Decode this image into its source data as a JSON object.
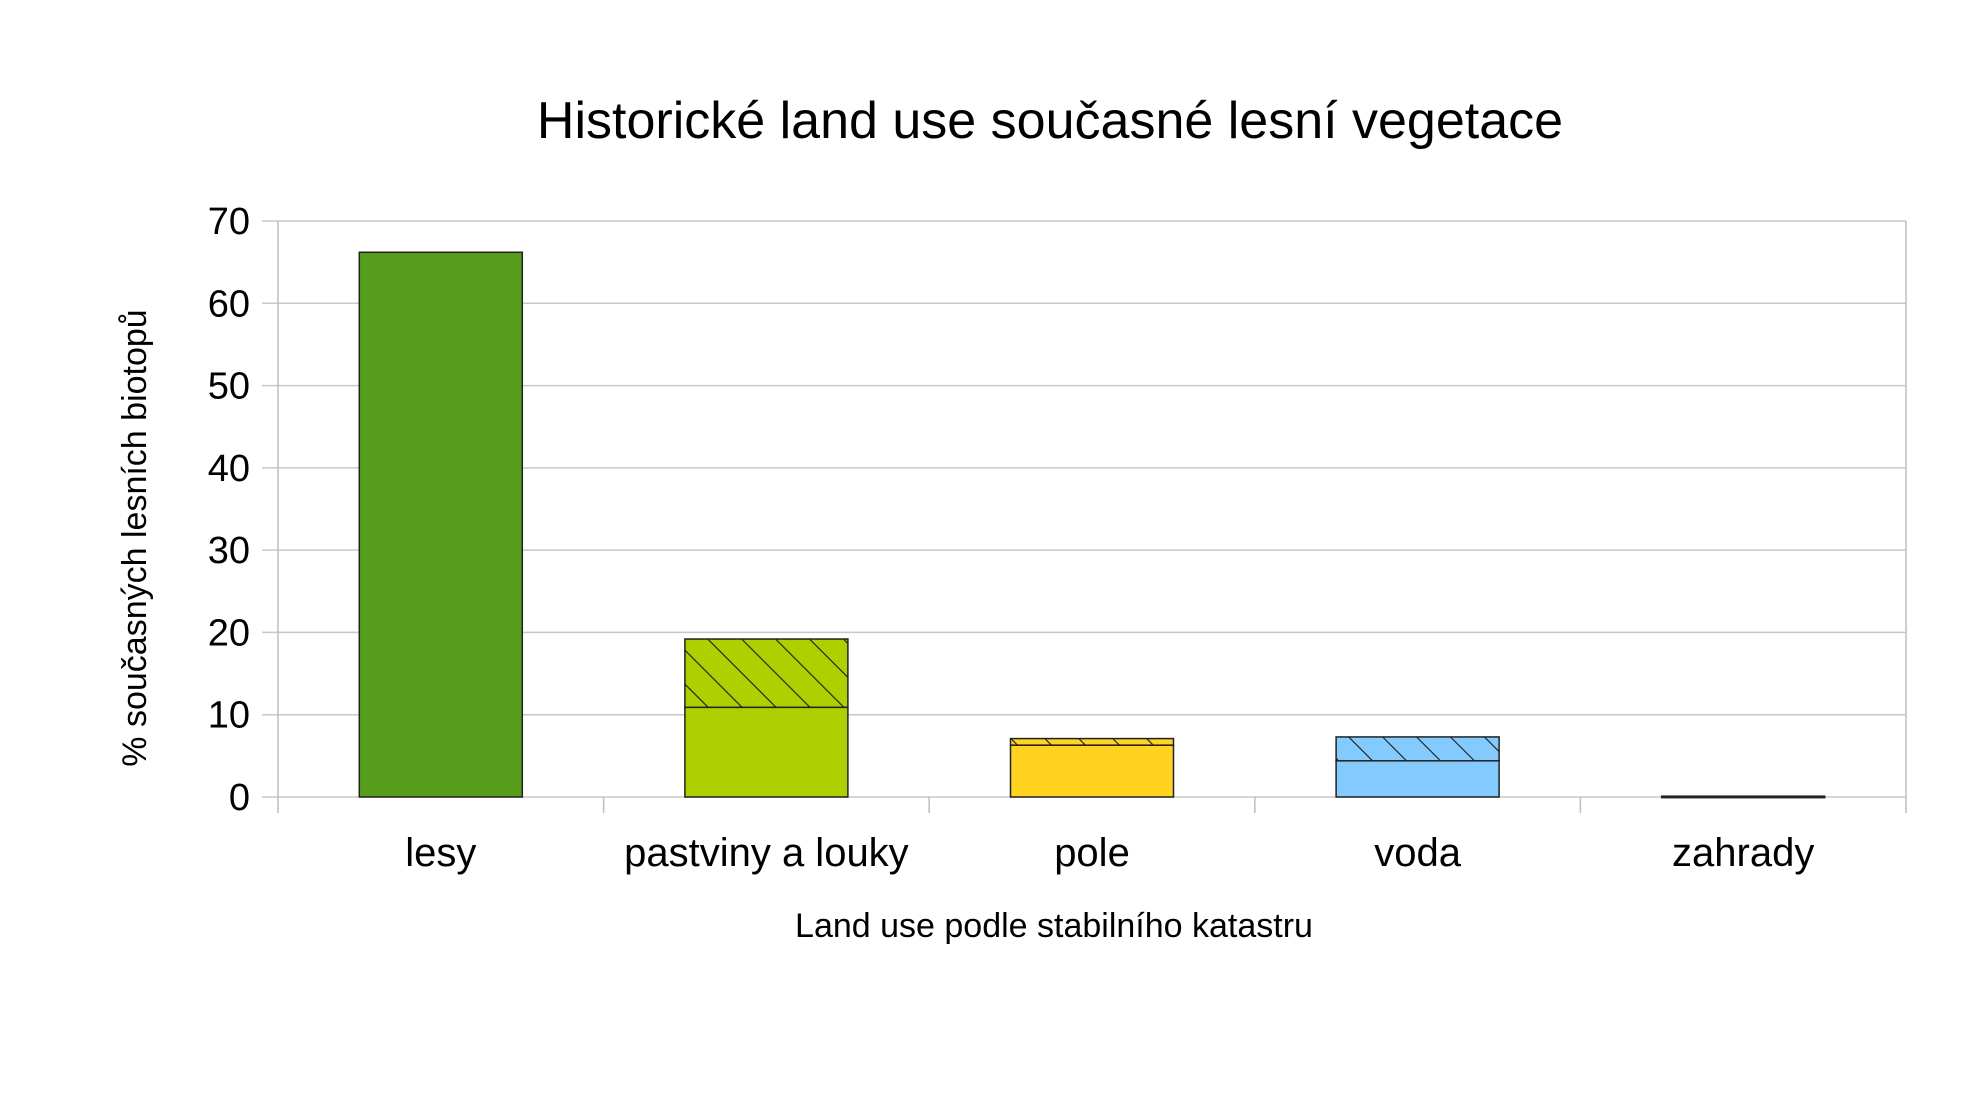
{
  "chart_data": {
    "type": "bar",
    "stacked": true,
    "title": "Historické land use současné lesní vegetace",
    "xlabel": "Land use podle stabilního katastru",
    "ylabel": "% současných lesních biotopů",
    "categories": [
      "lesy",
      "pastviny a louky",
      "pole",
      "voda",
      "zahrady"
    ],
    "ylim": [
      0,
      70
    ],
    "yticks": [
      0,
      10,
      20,
      30,
      40,
      50,
      60,
      70
    ],
    "grid": true,
    "legend": "none",
    "series": [
      {
        "values": [
          66.2,
          10.9,
          6.3,
          4.4,
          0.1
        ],
        "pattern": "solid"
      },
      {
        "values": [
          0,
          8.3,
          0.8,
          2.9,
          0
        ],
        "pattern": "hatched"
      }
    ],
    "colors": [
      "#579d1c",
      "#aecf00",
      "#ffd320",
      "#83caff",
      "#1a1a1a"
    ]
  }
}
